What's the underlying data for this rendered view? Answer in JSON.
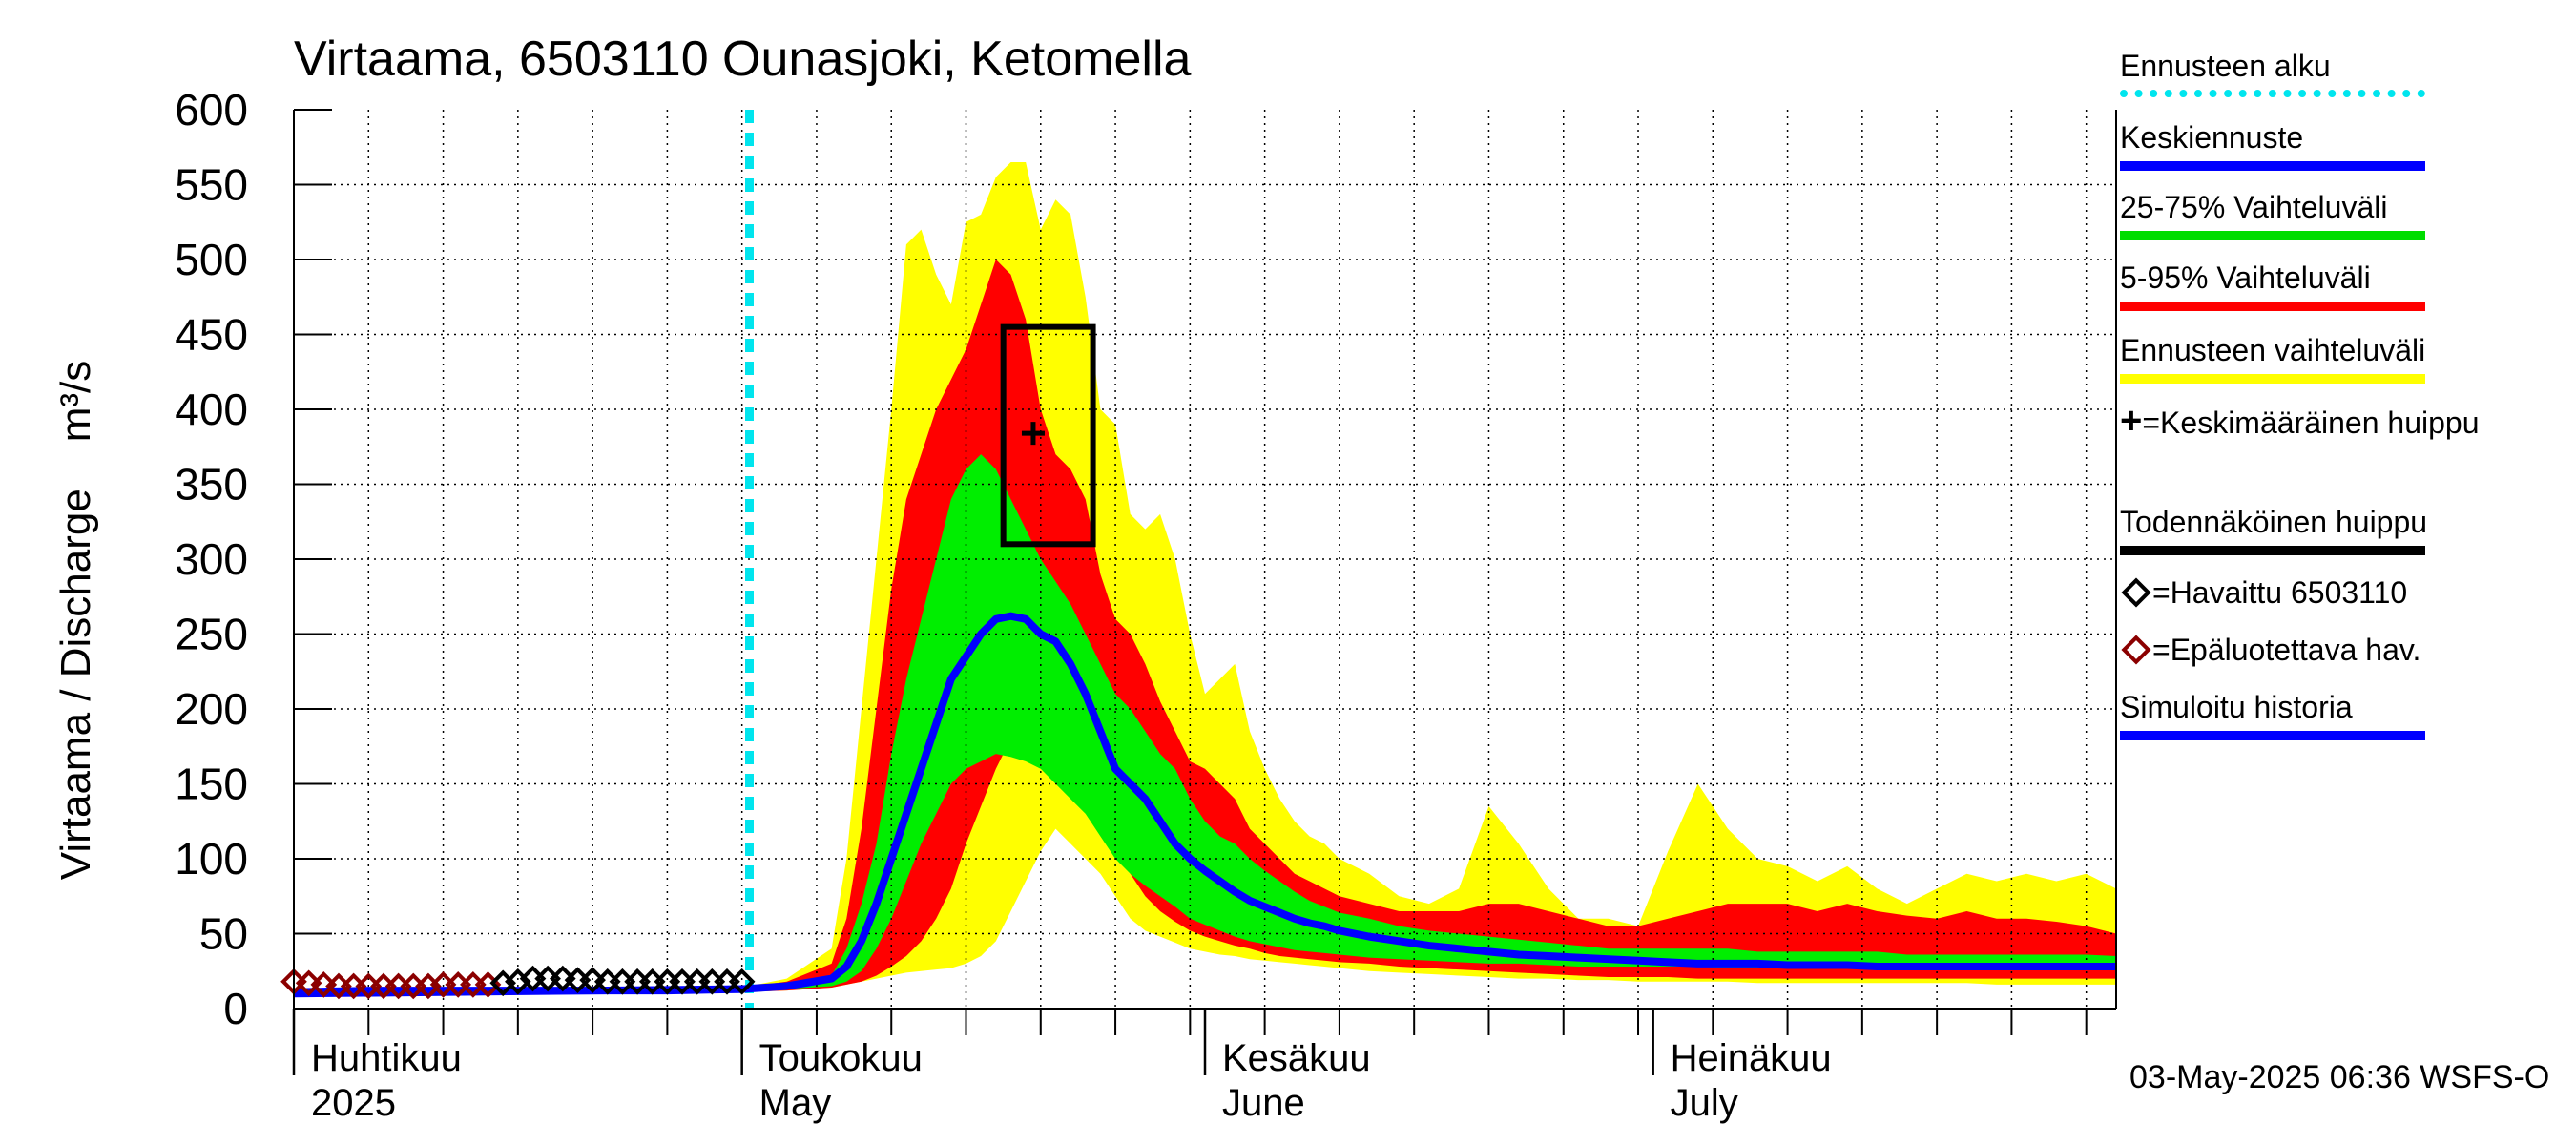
{
  "title": "Virtaama, 6503110 Ounasjoki, Ketomella",
  "y_axis_label": "Virtaama / Discharge",
  "y_axis_unit": "m³/s",
  "footer_timestamp": "03-May-2025 06:36 WSFS-O",
  "legend": [
    {
      "label": "Ennusteen alku",
      "color": "#00e5ee",
      "style": "dotted"
    },
    {
      "label": "Keskiennuste",
      "color": "#0000ff",
      "style": "solid"
    },
    {
      "label": "25-75% Vaihteluväli",
      "color": "#00dd00",
      "style": "solid"
    },
    {
      "label": "5-95% Vaihteluväli",
      "color": "#ff0000",
      "style": "solid"
    },
    {
      "label": "Ennusteen vaihteluväli",
      "color": "#ffff00",
      "style": "solid"
    },
    {
      "label": "=Keskimääräinen huippu",
      "marker": "+",
      "color": "#000000"
    },
    {
      "label": "Todennäköinen huippu",
      "color": "#000000",
      "style": "solid"
    },
    {
      "label": "=Havaittu 6503110",
      "marker": "diamond",
      "color": "#000000"
    },
    {
      "label": "=Epäluotettava hav.",
      "marker": "diamond",
      "color": "#8b0000"
    },
    {
      "label": "Simuloitu historia",
      "color": "#0000ff",
      "style": "solid"
    }
  ],
  "x_month_labels": [
    {
      "fi": "Huhtikuu",
      "en": "2025",
      "day": 0
    },
    {
      "fi": "Toukokuu",
      "en": "May",
      "day": 30
    },
    {
      "fi": "Kesäkuu",
      "en": "June",
      "day": 61
    },
    {
      "fi": "Heinäkuu",
      "en": "July",
      "day": 91
    }
  ],
  "chart_data": {
    "type": "area",
    "x_unit": "days since 2025-04-01",
    "xlim": [
      0,
      122
    ],
    "ylim": [
      0,
      600
    ],
    "yticks": [
      0,
      50,
      100,
      150,
      200,
      250,
      300,
      350,
      400,
      450,
      500,
      550,
      600
    ],
    "forecast_start_day": 30.5,
    "grid": true,
    "mean_peak": {
      "day": 49.5,
      "value": 384
    },
    "probable_peak_box": {
      "day_start": 47.5,
      "day_end": 53.5,
      "value_low": 310,
      "value_high": 455
    },
    "observed": {
      "days": [
        14,
        15,
        16,
        17,
        18,
        19,
        20,
        21,
        22,
        23,
        24,
        25,
        26,
        27,
        28,
        29,
        30
      ],
      "values": [
        17,
        18,
        20,
        20,
        20,
        19,
        19,
        18,
        18,
        18,
        18,
        18,
        18,
        18,
        18,
        18,
        18
      ]
    },
    "unreliable_observed": {
      "days": [
        0,
        1,
        2,
        3,
        4,
        5,
        6,
        7,
        8,
        9,
        10,
        11,
        12,
        13
      ],
      "values": [
        18,
        17,
        16,
        15,
        15,
        15,
        15,
        15,
        15,
        15,
        16,
        16,
        16,
        16
      ]
    },
    "x": [
      0,
      30,
      33,
      36,
      37,
      38,
      39,
      40,
      41,
      42,
      43,
      44,
      45,
      46,
      47,
      48,
      49,
      50,
      51,
      52,
      53,
      54,
      55,
      56,
      57,
      58,
      59,
      60,
      61,
      62,
      63,
      64,
      65,
      66,
      67,
      68,
      69,
      70,
      72,
      74,
      76,
      78,
      80,
      82,
      84,
      86,
      88,
      90,
      92,
      94,
      96,
      98,
      100,
      102,
      104,
      106,
      108,
      110,
      112,
      114,
      116,
      118,
      120,
      122
    ],
    "series": [
      {
        "name": "Ennusteen vaihteluväli (max)",
        "values": [
          10,
          14,
          20,
          40,
          100,
          200,
          300,
          400,
          510,
          520,
          490,
          470,
          525,
          530,
          555,
          565,
          565,
          520,
          540,
          530,
          475,
          400,
          390,
          330,
          320,
          330,
          300,
          250,
          210,
          220,
          230,
          185,
          160,
          140,
          125,
          115,
          110,
          100,
          90,
          75,
          70,
          80,
          135,
          110,
          80,
          60,
          60,
          55,
          105,
          150,
          120,
          100,
          95,
          85,
          95,
          80,
          70,
          80,
          90,
          85,
          90,
          85,
          90,
          80
        ]
      },
      {
        "name": "5-95% Vaihteluväli (ylä)",
        "values": [
          10,
          14,
          18,
          30,
          60,
          120,
          200,
          280,
          340,
          370,
          400,
          420,
          440,
          470,
          500,
          490,
          460,
          400,
          370,
          360,
          340,
          290,
          260,
          250,
          230,
          205,
          185,
          165,
          160,
          150,
          140,
          120,
          110,
          100,
          90,
          85,
          80,
          75,
          70,
          65,
          65,
          65,
          70,
          70,
          65,
          60,
          55,
          55,
          60,
          65,
          70,
          70,
          70,
          65,
          70,
          65,
          62,
          60,
          65,
          60,
          60,
          58,
          55,
          50
        ]
      },
      {
        "name": "25-75% Vaihteluväli (ylä)",
        "values": [
          10,
          13,
          16,
          22,
          40,
          70,
          110,
          170,
          220,
          260,
          300,
          340,
          360,
          370,
          360,
          340,
          320,
          300,
          285,
          270,
          250,
          230,
          210,
          200,
          185,
          170,
          160,
          140,
          125,
          115,
          110,
          100,
          92,
          85,
          78,
          72,
          68,
          64,
          60,
          55,
          52,
          50,
          48,
          46,
          44,
          42,
          40,
          40,
          40,
          40,
          40,
          38,
          38,
          38,
          38,
          38,
          36,
          36,
          36,
          36,
          36,
          36,
          36,
          35
        ]
      },
      {
        "name": "Keskiennuste",
        "values": [
          10,
          13,
          15,
          20,
          28,
          45,
          70,
          100,
          130,
          160,
          190,
          220,
          235,
          250,
          260,
          262,
          260,
          250,
          245,
          230,
          210,
          185,
          160,
          150,
          140,
          125,
          110,
          100,
          92,
          85,
          78,
          72,
          68,
          64,
          60,
          57,
          55,
          52,
          48,
          45,
          42,
          40,
          38,
          36,
          35,
          34,
          33,
          32,
          31,
          30,
          30,
          30,
          29,
          29,
          29,
          28,
          28,
          28,
          28,
          28,
          28,
          28,
          28,
          28
        ]
      },
      {
        "name": "25-75% Vaihteluväli (ala)",
        "values": [
          10,
          12,
          13,
          15,
          18,
          25,
          40,
          60,
          85,
          110,
          130,
          150,
          160,
          165,
          170,
          168,
          165,
          160,
          150,
          140,
          130,
          115,
          100,
          90,
          82,
          75,
          68,
          60,
          56,
          52,
          48,
          45,
          43,
          41,
          39,
          38,
          37,
          36,
          34,
          33,
          32,
          31,
          30,
          30,
          29,
          28,
          28,
          28,
          28,
          28,
          27,
          27,
          27,
          27,
          27,
          26,
          26,
          26,
          26,
          26,
          26,
          26,
          26,
          26
        ]
      },
      {
        "name": "5-95% Vaihteluväli (ala)",
        "values": [
          10,
          11,
          12,
          14,
          16,
          18,
          22,
          28,
          35,
          45,
          60,
          80,
          110,
          135,
          160,
          180,
          195,
          180,
          165,
          155,
          140,
          125,
          105,
          90,
          75,
          65,
          58,
          52,
          48,
          45,
          42,
          40,
          37,
          35,
          34,
          33,
          32,
          31,
          30,
          28,
          27,
          26,
          25,
          24,
          23,
          22,
          21,
          21,
          21,
          20,
          20,
          20,
          20,
          20,
          20,
          20,
          20,
          20,
          20,
          20,
          20,
          20,
          20,
          20
        ]
      },
      {
        "name": "Ennusteen vaihteluväli (min)",
        "values": [
          10,
          11,
          12,
          14,
          16,
          18,
          20,
          22,
          24,
          25,
          26,
          27,
          30,
          35,
          45,
          65,
          85,
          105,
          120,
          110,
          100,
          90,
          75,
          60,
          52,
          48,
          44,
          40,
          38,
          36,
          35,
          33,
          32,
          31,
          30,
          29,
          28,
          27,
          25,
          24,
          23,
          22,
          21,
          20,
          20,
          19,
          19,
          18,
          18,
          18,
          18,
          17,
          17,
          17,
          17,
          17,
          17,
          17,
          17,
          16,
          16,
          16,
          16,
          16
        ]
      }
    ],
    "simulated_history": {
      "days": [
        0,
        5,
        10,
        15,
        20,
        25,
        30
      ],
      "values": [
        11,
        12,
        12,
        12,
        12,
        12,
        13
      ]
    }
  }
}
